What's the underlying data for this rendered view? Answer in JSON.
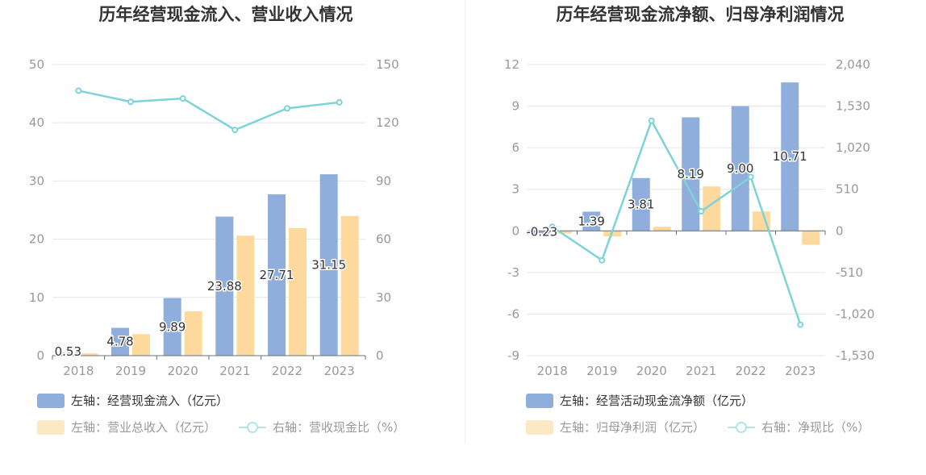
{
  "chart_data": [
    {
      "type": "bar",
      "title": "历年经营现金流入、营业收入情况",
      "categories": [
        "2018",
        "2019",
        "2020",
        "2021",
        "2022",
        "2023"
      ],
      "left_axis": {
        "ticks": [
          "0",
          "10",
          "20",
          "30",
          "40",
          "50"
        ],
        "range": [
          0,
          50
        ]
      },
      "right_axis": {
        "ticks": [
          "0",
          "30",
          "60",
          "90",
          "120",
          "150"
        ],
        "range": [
          0,
          150
        ]
      },
      "series": [
        {
          "name": "经营现金流入",
          "axis": "left",
          "type": "bar",
          "color": "#8faedc",
          "values": [
            0.53,
            4.78,
            9.89,
            23.88,
            27.71,
            31.15
          ],
          "labels": [
            "0.53",
            "4.78",
            "9.89",
            "23.88",
            "27.71",
            "31.15"
          ]
        },
        {
          "name": "营业总收入",
          "axis": "left",
          "type": "bar",
          "color": "#fdd99d",
          "values": [
            0.4,
            3.7,
            7.6,
            20.6,
            21.9,
            24.0
          ]
        },
        {
          "name": "营收现金比",
          "axis": "right",
          "type": "line",
          "color": "#7dd3d8",
          "values": [
            136.5,
            130.8,
            132.5,
            116.3,
            127.4,
            130.5
          ]
        }
      ],
      "legend": [
        {
          "text": "左轴：经营现金流入（亿元）",
          "dim": false
        },
        {
          "text": "左轴：营业总收入（亿元）",
          "dim": true
        },
        {
          "text": "右轴：营收现金比（%）",
          "dim": true
        }
      ]
    },
    {
      "type": "bar",
      "title": "历年经营现金流净额、归母净利润情况",
      "categories": [
        "2018",
        "2019",
        "2020",
        "2021",
        "2022",
        "2023"
      ],
      "left_axis": {
        "ticks": [
          "-9",
          "-6",
          "-3",
          "0",
          "3",
          "6",
          "9",
          "12"
        ],
        "range": [
          -9,
          12
        ]
      },
      "right_axis": {
        "ticks": [
          "-1,530",
          "-1,020",
          "-510",
          "0",
          "510",
          "1,020",
          "1,530",
          "2,040"
        ],
        "range": [
          -1530,
          2040
        ]
      },
      "series": [
        {
          "name": "经营活动现金流净额",
          "axis": "left",
          "type": "bar",
          "color": "#8faedc",
          "values": [
            -0.23,
            1.39,
            3.81,
            8.19,
            9.0,
            10.71
          ],
          "labels": [
            "-0.23",
            "1.39",
            "3.81",
            "8.19",
            "9.00",
            "10.71"
          ]
        },
        {
          "name": "归母净利润",
          "axis": "left",
          "type": "bar",
          "color": "#fdd99d",
          "values": [
            -0.2,
            -0.4,
            0.3,
            3.2,
            1.4,
            -1.0
          ]
        },
        {
          "name": "净现比",
          "axis": "right",
          "type": "line",
          "color": "#7dd3d8",
          "values": [
            50,
            -360,
            1350,
            240,
            660,
            -1150
          ]
        }
      ],
      "legend": [
        {
          "text": "左轴：经营活动现金流净额（亿元）",
          "dim": false
        },
        {
          "text": "左轴：归母净利润（亿元）",
          "dim": true
        },
        {
          "text": "右轴：净现比（%）",
          "dim": true
        }
      ]
    }
  ]
}
